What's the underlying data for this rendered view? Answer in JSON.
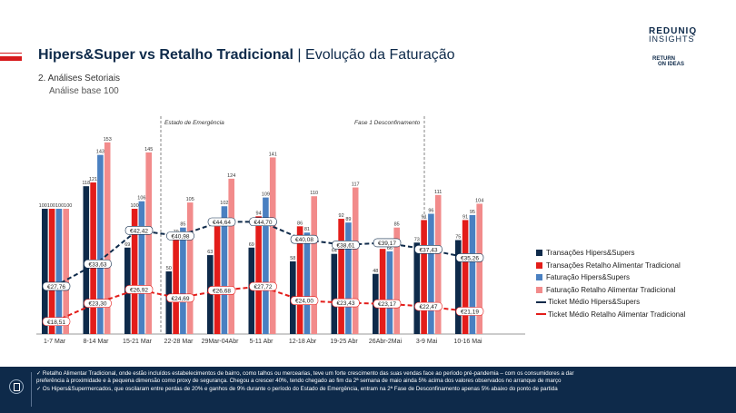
{
  "header": {
    "title_bold": "Hipers&Super vs Retalho Tradicional",
    "title_sep": " | ",
    "title_rest": "Evolução da Faturação",
    "section": "2. Análises Setoriais",
    "subsection": "Análise base 100",
    "logo_top": "REDUNIQ",
    "logo_sub": "INSIGHTS",
    "logo2_a": "RETURN",
    "logo2_b": "ON IDEAS"
  },
  "colors": {
    "navy": "#0e2a4a",
    "red": "#e31d1a",
    "blue": "#4a80c1",
    "pink": "#f28b8b"
  },
  "chart_data": {
    "type": "bar",
    "categories": [
      "1-7 Mar",
      "8-14 Mar",
      "15-21 Mar",
      "22-28 Mar",
      "29Mar-04Abr",
      "5-11 Abr",
      "12-18 Abr",
      "19-25 Abr",
      "26Abr-2Mai",
      "3-9 Mai",
      "10-16 Mai"
    ],
    "series": [
      {
        "name": "Transações Hipers&Supers",
        "values": [
          100,
          118,
          69,
          50,
          63,
          69,
          58,
          64,
          48,
          73,
          75
        ]
      },
      {
        "name": "Transações Retalho Alimentar Tradicional",
        "values": [
          100,
          121,
          100,
          79,
          86,
          94,
          86,
          92,
          68,
          91,
          91
        ]
      },
      {
        "name": "Faturação Hipers&Supers",
        "values": [
          100,
          143,
          106,
          85,
          102,
          109,
          81,
          89,
          66,
          96,
          95
        ]
      },
      {
        "name": "Faturação Retalho Alimentar Tradicional",
        "values": [
          100,
          153,
          145,
          105,
          124,
          141,
          110,
          117,
          85,
          111,
          104
        ]
      }
    ],
    "lines": [
      {
        "name": "Ticket Médio Hipers&Supers",
        "values": [
          27.76,
          33.63,
          42.42,
          40.98,
          44.64,
          44.7,
          40.08,
          38.61,
          39.17,
          37.43,
          35.26
        ],
        "labels": [
          "€27,76",
          "€33,63",
          "€42,42",
          "€40,98",
          "€44,64",
          "€44,70",
          "€40,08",
          "€38,61",
          "€39,17",
          "€37,43",
          "€35,26"
        ]
      },
      {
        "name": "Ticket Médio Retalho Alimentar Tradicional",
        "values": [
          18.51,
          23.3,
          26.92,
          24.69,
          26.68,
          27.72,
          24.0,
          23.43,
          23.17,
          22.47,
          21.19
        ],
        "labels": [
          "€18,51",
          "€23,30",
          "€26,92",
          "€24,69",
          "€26,68",
          "€27,72",
          "€24,00",
          "€23,43",
          "€23,17",
          "€22,47",
          "€21,19"
        ]
      }
    ],
    "first_label": "100100100100",
    "annotations": [
      "Estado de Emergência",
      "Fase 1 Desconfinamento"
    ],
    "ylim": [
      0,
      170
    ]
  },
  "legend": [
    {
      "label": "Transações Hipers&Supers",
      "kind": "box",
      "color": "#0e2a4a"
    },
    {
      "label": "Transações Retalho Alimentar Tradicional",
      "kind": "box",
      "color": "#e31d1a"
    },
    {
      "label": "Faturação Hipers&Supers",
      "kind": "box",
      "color": "#4a80c1"
    },
    {
      "label": "Faturação Retalho Alimentar Tradicional",
      "kind": "box",
      "color": "#f28b8b"
    },
    {
      "label": "Ticket Médio Hipers&Supers",
      "kind": "line",
      "color": "#0e2a4a"
    },
    {
      "label": "Ticket Médio Retalho Alimentar Tradicional",
      "kind": "line",
      "color": "#e31d1a"
    }
  ],
  "footer": {
    "line1": "✓ Retalho Alimentar Tradicional, onde estão incluídos estabelecimentos de bairro, como talhos ou mercearias, teve um forte crescimento das suas vendas face ao período pré-pandemia – com os consumidores a dar",
    "line2": "   preferência à proximidade e à pequena dimensão como proxy de segurança. Chegou a crescer 40%, tendo chegado ao fim da 2ª semana de maio ainda 5% acima dos valores observados no arranque de março",
    "line3": "✓ Os Hipers&Supermercados, que oscilaram entre perdas de 20% e ganhos de 9% durante o período do Estado de Emergência, entram na 2ª Fase de Desconfinamento apenas 5% abaixo do ponto de partida"
  }
}
